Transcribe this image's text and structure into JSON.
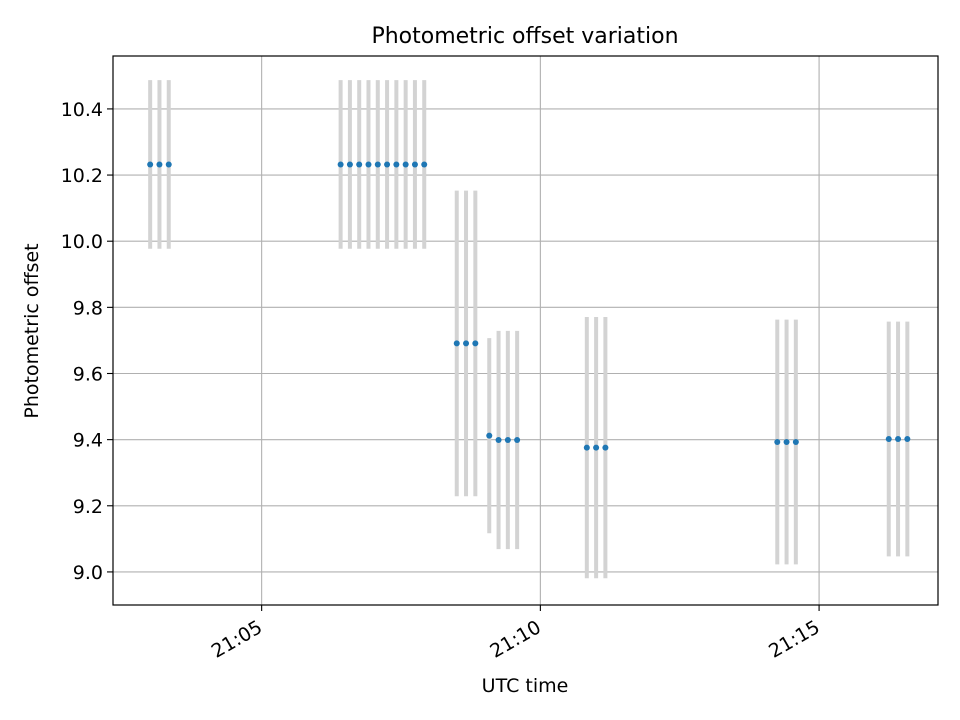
{
  "chart_data": {
    "type": "scatter",
    "title": "Photometric offset variation",
    "xlabel": "UTC time",
    "ylabel": "Photometric offset",
    "xlim": [
      "21:02:20",
      "21:17:08"
    ],
    "ylim": [
      8.9,
      10.56
    ],
    "x_ticks": [
      "21:05",
      "21:10",
      "21:15"
    ],
    "y_ticks": [
      "9.0",
      "9.2",
      "9.4",
      "9.6",
      "9.8",
      "10.0",
      "10.2",
      "10.4"
    ],
    "grid": true,
    "point_color": "#1f77b4",
    "errorbar_color": "#d3d3d3",
    "points": [
      {
        "t": "21:03:00",
        "y": 10.232,
        "err": 0.255
      },
      {
        "t": "21:03:10",
        "y": 10.232,
        "err": 0.255
      },
      {
        "t": "21:03:20",
        "y": 10.232,
        "err": 0.255
      },
      {
        "t": "21:06:25",
        "y": 10.232,
        "err": 0.255
      },
      {
        "t": "21:06:35",
        "y": 10.232,
        "err": 0.255
      },
      {
        "t": "21:06:45",
        "y": 10.232,
        "err": 0.255
      },
      {
        "t": "21:06:55",
        "y": 10.232,
        "err": 0.255
      },
      {
        "t": "21:07:05",
        "y": 10.232,
        "err": 0.255
      },
      {
        "t": "21:07:15",
        "y": 10.232,
        "err": 0.255
      },
      {
        "t": "21:07:25",
        "y": 10.232,
        "err": 0.255
      },
      {
        "t": "21:07:35",
        "y": 10.232,
        "err": 0.255
      },
      {
        "t": "21:07:45",
        "y": 10.232,
        "err": 0.255
      },
      {
        "t": "21:07:55",
        "y": 10.232,
        "err": 0.255
      },
      {
        "t": "21:08:30",
        "y": 9.691,
        "err": 0.462
      },
      {
        "t": "21:08:40",
        "y": 9.691,
        "err": 0.462
      },
      {
        "t": "21:08:50",
        "y": 9.691,
        "err": 0.462
      },
      {
        "t": "21:09:05",
        "y": 9.412,
        "err": 0.295
      },
      {
        "t": "21:09:15",
        "y": 9.399,
        "err": 0.33
      },
      {
        "t": "21:09:25",
        "y": 9.399,
        "err": 0.33
      },
      {
        "t": "21:09:35",
        "y": 9.399,
        "err": 0.33
      },
      {
        "t": "21:10:50",
        "y": 9.376,
        "err": 0.395
      },
      {
        "t": "21:11:00",
        "y": 9.376,
        "err": 0.395
      },
      {
        "t": "21:11:10",
        "y": 9.376,
        "err": 0.395
      },
      {
        "t": "21:14:15",
        "y": 9.393,
        "err": 0.37
      },
      {
        "t": "21:14:25",
        "y": 9.393,
        "err": 0.37
      },
      {
        "t": "21:14:35",
        "y": 9.393,
        "err": 0.37
      },
      {
        "t": "21:16:15",
        "y": 9.402,
        "err": 0.355
      },
      {
        "t": "21:16:25",
        "y": 9.402,
        "err": 0.355
      },
      {
        "t": "21:16:35",
        "y": 9.402,
        "err": 0.355
      }
    ]
  }
}
